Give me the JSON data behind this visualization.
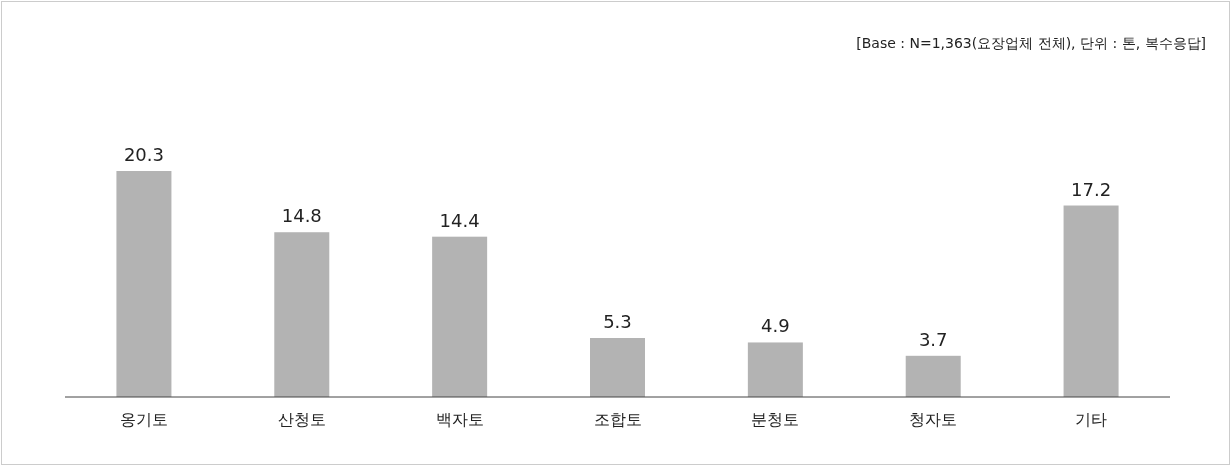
{
  "chart_data": {
    "type": "bar",
    "categories": [
      "옹기토",
      "산청토",
      "백자토",
      "조합토",
      "분청토",
      "청자토",
      "기타"
    ],
    "values": [
      20.3,
      14.8,
      14.4,
      5.3,
      4.9,
      3.7,
      17.2
    ],
    "color": "#b3b3b3",
    "data_labels": true,
    "annotations": [
      "[Base : N=1,363(요장업체 전체), 단위 : 톤, 복수응답]"
    ]
  }
}
